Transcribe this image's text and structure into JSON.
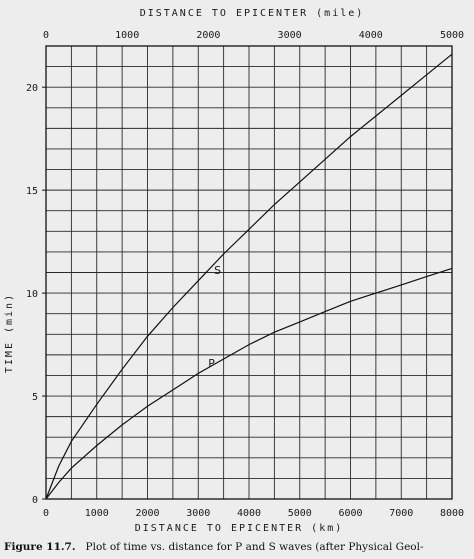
{
  "chart_data": {
    "type": "line",
    "title": "",
    "x_top_label": "DISTANCE TO EPICENTER (mile)",
    "x_top_ticks": [
      "0",
      "1000",
      "2000",
      "3000",
      "4000",
      "5000"
    ],
    "x_top_lim": [
      0,
      5000
    ],
    "xlabel": "DISTANCE TO EPICENTER (km)",
    "x_ticks": [
      "0",
      "1000",
      "2000",
      "3000",
      "4000",
      "5000",
      "6000",
      "7000",
      "8000"
    ],
    "xlim": [
      0,
      8000
    ],
    "ylabel": "TIME (min)",
    "y_ticks": [
      "0",
      "5",
      "10",
      "15",
      "20"
    ],
    "ylim": [
      0,
      22
    ],
    "grid": true,
    "series": [
      {
        "name": "S",
        "x": [
          0,
          250,
          500,
          1000,
          1500,
          2000,
          2500,
          3000,
          3500,
          4000,
          4500,
          5000,
          5500,
          6000,
          6500,
          7000,
          7500,
          8000
        ],
        "y": [
          0,
          1.6,
          2.8,
          4.6,
          6.3,
          7.9,
          9.3,
          10.6,
          11.9,
          13.1,
          14.3,
          15.4,
          16.5,
          17.6,
          18.6,
          19.6,
          20.6,
          21.6
        ]
      },
      {
        "name": "P",
        "x": [
          0,
          250,
          500,
          1000,
          1500,
          2000,
          2500,
          3000,
          3500,
          4000,
          4500,
          5000,
          5500,
          6000,
          6500,
          7000,
          7500,
          8000
        ],
        "y": [
          0,
          0.8,
          1.5,
          2.6,
          3.6,
          4.5,
          5.3,
          6.1,
          6.8,
          7.5,
          8.1,
          8.6,
          9.1,
          9.6,
          10.0,
          10.4,
          10.8,
          11.2
        ]
      }
    ]
  },
  "caption": {
    "figure_no": "Figure 11.7.",
    "text": "Plot of time vs. distance for P and S waves (after Physical Geol-"
  }
}
